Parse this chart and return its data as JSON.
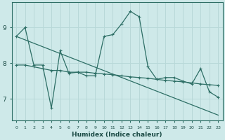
{
  "xlabel": "Humidex (Indice chaleur)",
  "background_color": "#cee9e9",
  "grid_color": "#b8d8d8",
  "line_color": "#2d6e65",
  "xlim": [
    -0.5,
    23.5
  ],
  "ylim": [
    6.4,
    9.7
  ],
  "yticks": [
    7,
    8,
    9
  ],
  "xticks": [
    0,
    1,
    2,
    3,
    4,
    5,
    6,
    7,
    8,
    9,
    10,
    11,
    12,
    13,
    14,
    15,
    16,
    17,
    18,
    19,
    20,
    21,
    22,
    23
  ],
  "series1_x": [
    0,
    1,
    2,
    3,
    4,
    5,
    6,
    7,
    8,
    9,
    10,
    11,
    12,
    13,
    14,
    15,
    16,
    17,
    18,
    19,
    20,
    21,
    22,
    23
  ],
  "series1_y": [
    8.75,
    9.0,
    7.95,
    7.95,
    6.75,
    8.35,
    7.72,
    7.75,
    7.65,
    7.65,
    8.75,
    8.8,
    9.1,
    9.45,
    9.3,
    7.9,
    7.55,
    7.6,
    7.6,
    7.5,
    7.42,
    7.85,
    7.2,
    7.05
  ],
  "series2_x": [
    0,
    23
  ],
  "series2_y": [
    8.75,
    6.55
  ],
  "series3_x": [
    0,
    1,
    2,
    3,
    4,
    5,
    6,
    7,
    8,
    9,
    10,
    11,
    12,
    13,
    14,
    15,
    16,
    17,
    18,
    19,
    20,
    21,
    22,
    23
  ],
  "series3_y": [
    7.95,
    7.95,
    7.9,
    7.85,
    7.8,
    7.8,
    7.75,
    7.75,
    7.75,
    7.72,
    7.7,
    7.68,
    7.65,
    7.62,
    7.6,
    7.58,
    7.55,
    7.52,
    7.5,
    7.48,
    7.45,
    7.42,
    7.4,
    7.38
  ]
}
